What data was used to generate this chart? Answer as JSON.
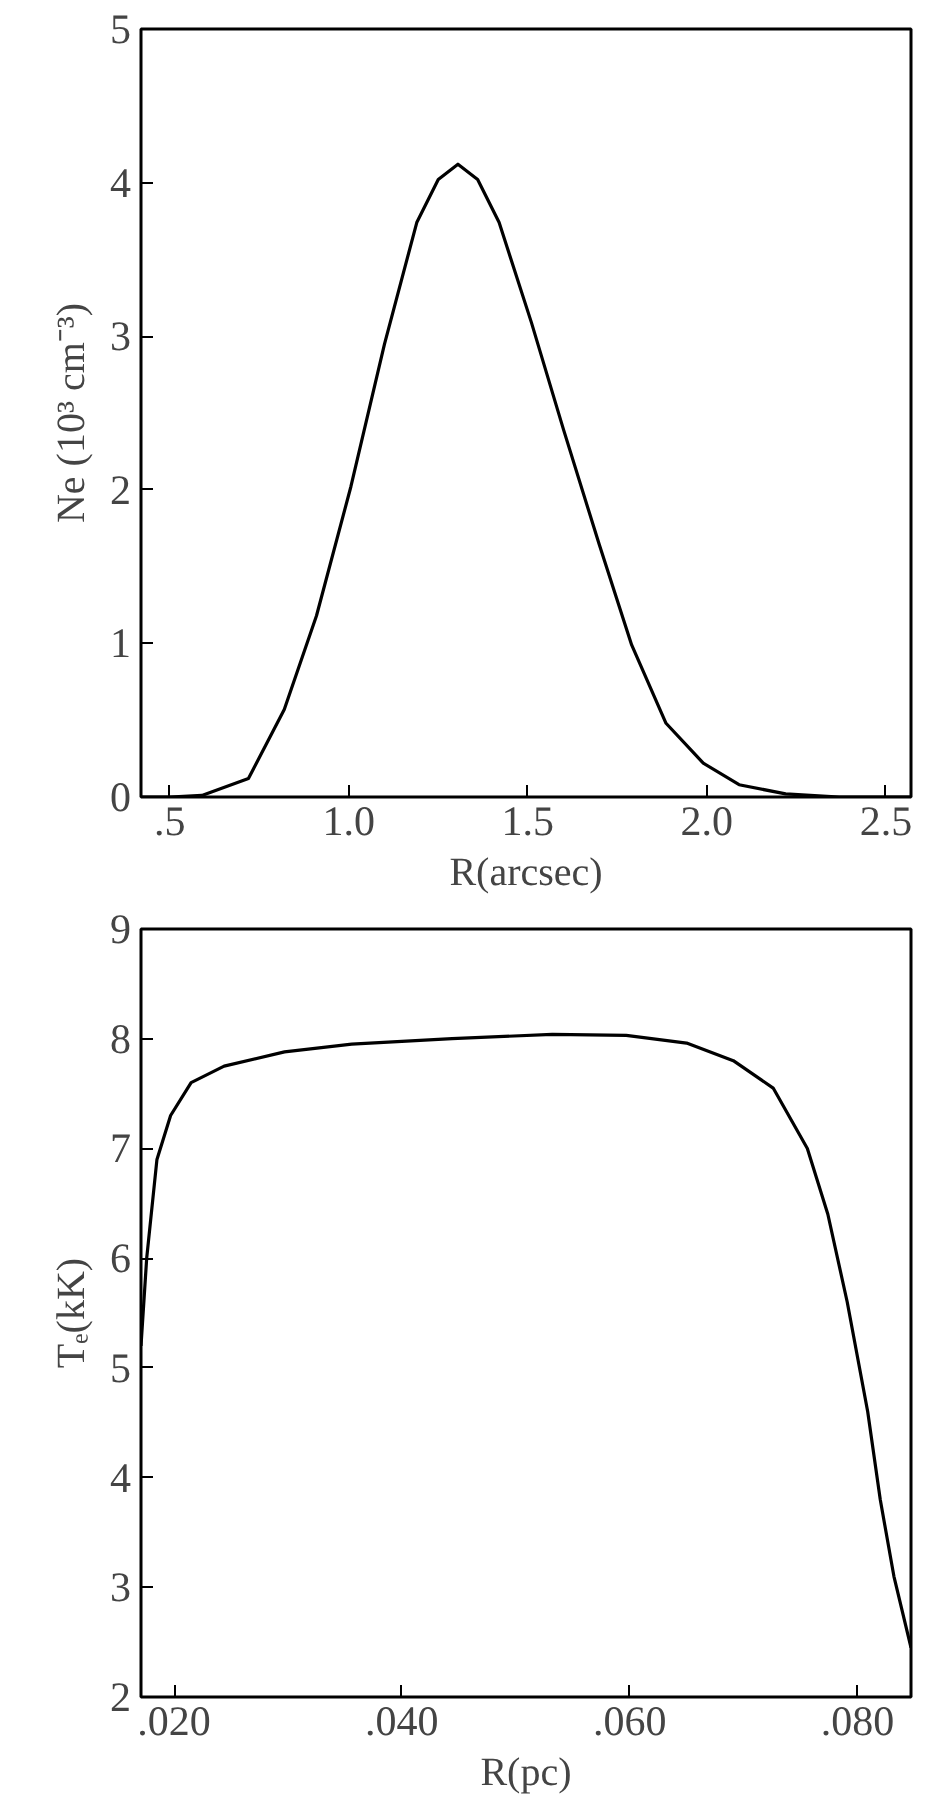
{
  "chart_data": [
    {
      "type": "line",
      "xlabel": "R(arcsec)",
      "ylabel": "Ne (10³ cm⁻³)",
      "xlim": [
        0.42,
        2.57
      ],
      "ylim": [
        0,
        5
      ],
      "xticks": [
        {
          "value": 0.5,
          "label": ".5"
        },
        {
          "value": 1.0,
          "label": "1.0"
        },
        {
          "value": 1.5,
          "label": "1.5"
        },
        {
          "value": 2.0,
          "label": "2.0"
        },
        {
          "value": 2.5,
          "label": "2.5"
        }
      ],
      "yticks": [
        0,
        1,
        2,
        3,
        4,
        5
      ],
      "grid": false,
      "marker": "none",
      "line_style": "solid",
      "series": [
        {
          "color": "#000000",
          "x": [
            0.42,
            0.5,
            0.59,
            0.72,
            0.82,
            0.91,
            1.006,
            1.1,
            1.19,
            1.25,
            1.305,
            1.36,
            1.42,
            1.51,
            1.6,
            1.7,
            1.79,
            1.886,
            1.99,
            2.09,
            2.22,
            2.37,
            2.57
          ],
          "values": [
            0,
            0,
            0.01,
            0.12,
            0.57,
            1.18,
            2.02,
            2.95,
            3.74,
            4.02,
            4.12,
            4.02,
            3.74,
            3.09,
            2.39,
            1.64,
            0.99,
            0.48,
            0.22,
            0.08,
            0.02,
            0,
            0
          ]
        }
      ]
    },
    {
      "type": "line",
      "xlabel": "R(pc)",
      "ylabel": "Tₑ(kK)",
      "xlim": [
        0.0171,
        0.0847
      ],
      "ylim": [
        2,
        9
      ],
      "xticks": [
        {
          "value": 0.02,
          "label": ".020"
        },
        {
          "value": 0.04,
          "label": ".040"
        },
        {
          "value": 0.06,
          "label": ".060"
        },
        {
          "value": 0.08,
          "label": ".080"
        }
      ],
      "yticks": [
        2,
        3,
        4,
        5,
        6,
        7,
        8,
        9
      ],
      "grid": false,
      "marker": "none",
      "line_style": "solid",
      "series": [
        {
          "color": "#000000",
          "x": [
            0.0171,
            0.0176,
            0.0185,
            0.0197,
            0.0215,
            0.0244,
            0.0297,
            0.0356,
            0.0444,
            0.0532,
            0.0597,
            0.065,
            0.0691,
            0.0726,
            0.0756,
            0.0774,
            0.0791,
            0.0809,
            0.082,
            0.0832,
            0.0847
          ],
          "values": [
            5.2,
            6.0,
            6.9,
            7.3,
            7.6,
            7.75,
            7.88,
            7.95,
            8.0,
            8.04,
            8.03,
            7.96,
            7.8,
            7.55,
            7.0,
            6.4,
            5.6,
            4.6,
            3.8,
            3.1,
            2.45
          ]
        }
      ]
    }
  ]
}
